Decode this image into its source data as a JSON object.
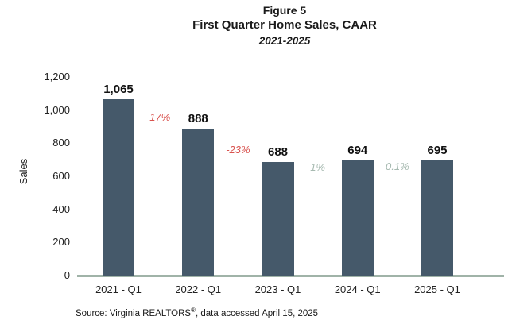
{
  "figure": {
    "number": "Figure 5",
    "title": "First Quarter Home Sales, CAAR",
    "subtitle": "2021-2025"
  },
  "chart_data": {
    "type": "bar",
    "title": "Figure 5 — First Quarter Home Sales, CAAR, 2021-2025",
    "categories": [
      "2021 - Q1",
      "2022 - Q1",
      "2023 - Q1",
      "2024 - Q1",
      "2025 - Q1"
    ],
    "values": [
      1065,
      888,
      688,
      694,
      695
    ],
    "value_labels": [
      "1,065",
      "888",
      "688",
      "694",
      "695"
    ],
    "xlabel": "",
    "ylabel": "Sales",
    "ylim": [
      0,
      1200
    ],
    "yticks": [
      {
        "value": 0,
        "label": "0"
      },
      {
        "value": 200,
        "label": "200"
      },
      {
        "value": 400,
        "label": "400"
      },
      {
        "value": 600,
        "label": "600"
      },
      {
        "value": 800,
        "label": "800"
      },
      {
        "value": 1000,
        "label": "1,000"
      },
      {
        "value": 1200,
        "label": "1,200"
      }
    ],
    "grid": false,
    "legend": "none",
    "bar_color": "#45596a",
    "axis_line_color": "#a0b3a8",
    "negative_annotation_color": "#d9534f",
    "positive_annotation_color": "#a7bab1",
    "annotations": [
      {
        "text": "-17%",
        "color": "#d9534f",
        "gap_index": 0,
        "y_value": 955
      },
      {
        "text": "-23%",
        "color": "#d9534f",
        "gap_index": 1,
        "y_value": 760
      },
      {
        "text": "1%",
        "color": "#a7bab1",
        "gap_index": 2,
        "y_value": 655
      },
      {
        "text": "0.1%",
        "color": "#a7bab1",
        "gap_index": 3,
        "y_value": 660
      }
    ]
  },
  "source": {
    "prefix": "Source: Virginia REALTORS",
    "reg": "®",
    "suffix": ", data accessed April 15, 2025"
  }
}
